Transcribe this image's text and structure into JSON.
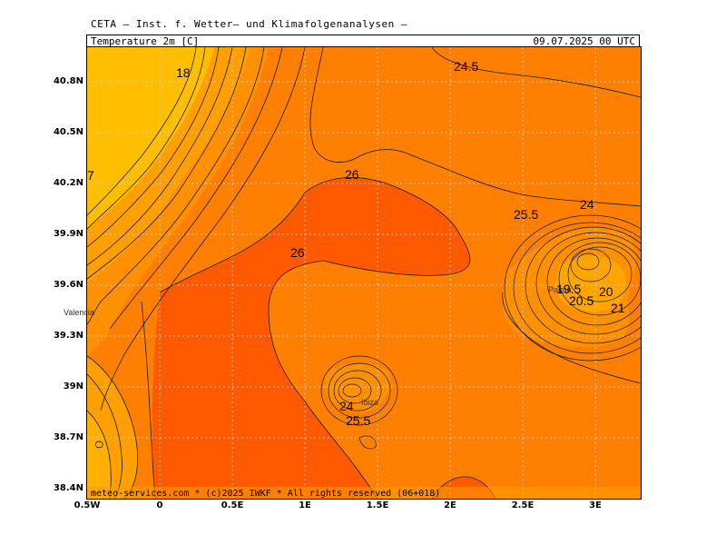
{
  "header": {
    "credit": "CETA — Inst. f. Wetter— und Klimafolgenanalysen —",
    "variable": "Temperature 2m [C]",
    "datetime": "09.07.2025 00 UTC"
  },
  "footer": {
    "copyright": "meteo-services.com * (c)2025 IWKF * All rights reserved (06+018)"
  },
  "axes": {
    "lat_ticks": [
      "40.8N",
      "40.5N",
      "40.2N",
      "39.9N",
      "39.6N",
      "39.3N",
      "39N",
      "38.7N",
      "38.4N"
    ],
    "lon_ticks": [
      "0.5W",
      "0",
      "0.5E",
      "1E",
      "1.5E",
      "2E",
      "2.5E",
      "3E"
    ]
  },
  "contour_labels": [
    {
      "text": "18"
    },
    {
      "text": "24.5"
    },
    {
      "text": "7"
    },
    {
      "text": "26"
    },
    {
      "text": "25.5"
    },
    {
      "text": "24"
    },
    {
      "text": "26"
    },
    {
      "text": "19.5"
    },
    {
      "text": "20"
    },
    {
      "text": "20.5"
    },
    {
      "text": "21"
    },
    {
      "text": "24"
    },
    {
      "text": "25.5"
    }
  ],
  "places": {
    "valencia": "Valencia",
    "palma": "Palma",
    "ibiza": "Ibiza"
  },
  "colors": {
    "sea_orange": "#ff7f00",
    "warm_core": "#ff5a00",
    "cool_yellow": "#ffbf00",
    "mid_orange": "#ff9f00",
    "contour": "#1a1a1a",
    "grid": "#c8c8c8"
  }
}
